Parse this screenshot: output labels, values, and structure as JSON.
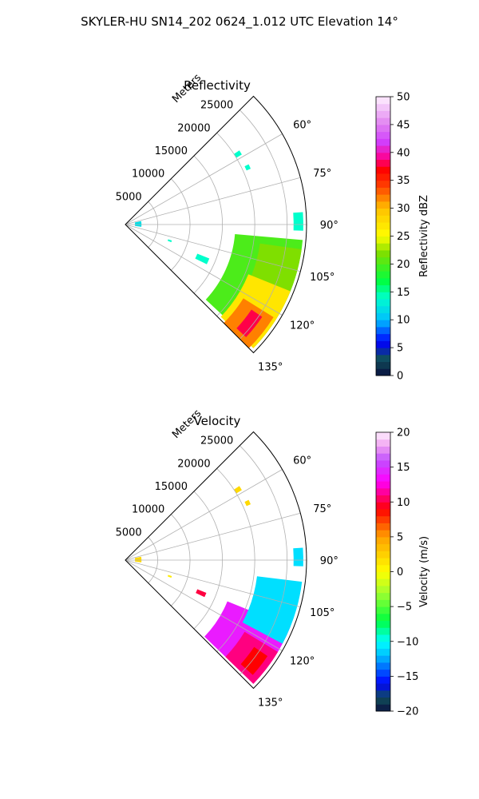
{
  "figure": {
    "suptitle": "SKYLER-HU  SN14_202  0624_1.012 UTC Elevation 14°"
  },
  "chart_data": [
    {
      "type": "polar-sector",
      "title": "Reflectivity",
      "range_label": "Meters",
      "angle_range": [
        45,
        135
      ],
      "radial_ticks": [
        5000,
        10000,
        15000,
        20000,
        25000
      ],
      "radial_tick_labels": [
        "5000",
        "10000",
        "15000",
        "20000",
        "25000"
      ],
      "radial_max": 28000,
      "angle_ticks": [
        60,
        75,
        90,
        105,
        120,
        135
      ],
      "angle_tick_labels": [
        "60°",
        "75°",
        "90°",
        "105°",
        "120°",
        "135°"
      ],
      "grid": true,
      "colorbar": {
        "label": "Reflectivity dBZ",
        "range": [
          0,
          50
        ],
        "ticks": [
          0,
          5,
          10,
          15,
          20,
          25,
          30,
          35,
          40,
          45,
          50
        ],
        "tick_labels": [
          "0",
          "5",
          "10",
          "15",
          "20",
          "25",
          "30",
          "35",
          "40",
          "45",
          "50"
        ],
        "stops": [
          [
            0,
            "#0a1040"
          ],
          [
            3,
            "#10505a"
          ],
          [
            6,
            "#0000ff"
          ],
          [
            10,
            "#00bfff"
          ],
          [
            14,
            "#00ffcc"
          ],
          [
            17,
            "#00ff40"
          ],
          [
            22,
            "#7fdf00"
          ],
          [
            25,
            "#ffff00"
          ],
          [
            30,
            "#ffc000"
          ],
          [
            34,
            "#ff4000"
          ],
          [
            37,
            "#ff0000"
          ],
          [
            39,
            "#ff0090"
          ],
          [
            42,
            "#d040ff"
          ],
          [
            45,
            "#e080f0"
          ],
          [
            50,
            "#fff0ff"
          ]
        ]
      },
      "regions": [
        {
          "value": 20,
          "az": [
            95,
            133
          ],
          "r": [
            17000,
            27500
          ]
        },
        {
          "value": 22,
          "az": [
            98,
            125
          ],
          "r": [
            21000,
            27500
          ]
        },
        {
          "value": 27,
          "az": [
            112,
            134
          ],
          "r": [
            20500,
            27500
          ]
        },
        {
          "value": 32,
          "az": [
            122,
            135
          ],
          "r": [
            21500,
            27000
          ]
        },
        {
          "value": 38,
          "az": [
            124,
            133
          ],
          "r": [
            23500,
            25500
          ]
        },
        {
          "value": 14,
          "az": [
            86,
            92
          ],
          "r": [
            26000,
            27500
          ]
        },
        {
          "value": 14,
          "az": [
            112,
            116
          ],
          "r": [
            12000,
            14000
          ]
        },
        {
          "value": 12,
          "az": [
            78,
            98
          ],
          "r": [
            1500,
            2500
          ]
        },
        {
          "value": 14,
          "az": [
            57,
            59
          ],
          "r": [
            20000,
            21000
          ]
        },
        {
          "value": 14,
          "az": [
            64,
            66
          ],
          "r": [
            20500,
            21200
          ]
        },
        {
          "value": 14,
          "az": [
            109,
            111
          ],
          "r": [
            7000,
            7600
          ]
        }
      ]
    },
    {
      "type": "polar-sector",
      "title": "Velocity",
      "range_label": "Meters",
      "angle_range": [
        45,
        135
      ],
      "radial_ticks": [
        5000,
        10000,
        15000,
        20000,
        25000
      ],
      "radial_tick_labels": [
        "5000",
        "10000",
        "15000",
        "20000",
        "25000"
      ],
      "radial_max": 28000,
      "angle_ticks": [
        60,
        75,
        90,
        105,
        120,
        135
      ],
      "angle_tick_labels": [
        "60°",
        "75°",
        "90°",
        "105°",
        "120°",
        "135°"
      ],
      "grid": true,
      "colorbar": {
        "label": "Velocity (m/s)",
        "range": [
          -20,
          20
        ],
        "ticks": [
          -20,
          -15,
          -10,
          -5,
          0,
          5,
          10,
          15,
          20
        ],
        "tick_labels": [
          "−20",
          "−15",
          "−10",
          "−5",
          "0",
          "5",
          "10",
          "15",
          "20"
        ],
        "stops": [
          [
            -20,
            "#0a1040"
          ],
          [
            -18,
            "#10505a"
          ],
          [
            -16,
            "#0000ff"
          ],
          [
            -12,
            "#00bfff"
          ],
          [
            -10,
            "#00ffff"
          ],
          [
            -7,
            "#00ff40"
          ],
          [
            -3,
            "#a0ff30"
          ],
          [
            0,
            "#ffff00"
          ],
          [
            5,
            "#ffa000"
          ],
          [
            9,
            "#ff0000"
          ],
          [
            11,
            "#ff0080"
          ],
          [
            13,
            "#ff00ff"
          ],
          [
            16,
            "#c050ff"
          ],
          [
            18,
            "#f0a0f0"
          ],
          [
            20,
            "#fff0ff"
          ]
        ]
      },
      "regions": [
        {
          "value": 14,
          "az": [
            112,
            134
          ],
          "r": [
            17000,
            27500
          ]
        },
        {
          "value": -11,
          "az": [
            97,
            118
          ],
          "r": [
            20500,
            27500
          ]
        },
        {
          "value": 11,
          "az": [
            121,
            134
          ],
          "r": [
            21500,
            27500
          ]
        },
        {
          "value": 9,
          "az": [
            124,
            132
          ],
          "r": [
            24000,
            26500
          ]
        },
        {
          "value": -11,
          "az": [
            86,
            92
          ],
          "r": [
            26000,
            27500
          ]
        },
        {
          "value": 10,
          "az": [
            112,
            115
          ],
          "r": [
            12000,
            13500
          ]
        },
        {
          "value": 2,
          "az": [
            78,
            98
          ],
          "r": [
            1500,
            2500
          ]
        },
        {
          "value": 2,
          "az": [
            57,
            59
          ],
          "r": [
            20000,
            21000
          ]
        },
        {
          "value": 2,
          "az": [
            64,
            66
          ],
          "r": [
            20500,
            21200
          ]
        },
        {
          "value": 1,
          "az": [
            109,
            111
          ],
          "r": [
            7000,
            7600
          ]
        }
      ]
    }
  ]
}
